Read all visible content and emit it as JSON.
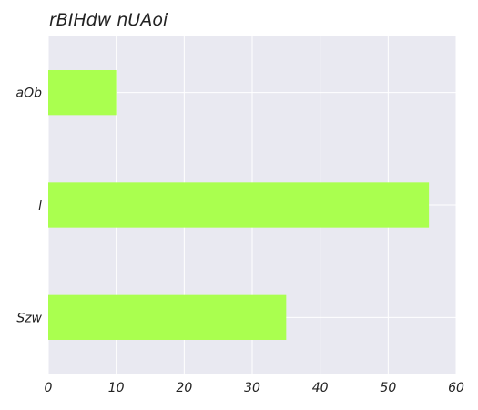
{
  "chart_data": {
    "type": "bar",
    "orientation": "horizontal",
    "title": "rBIHdw nUAoi",
    "xlabel": "",
    "ylabel": "",
    "categories": [
      "aOb",
      "l",
      "Szw"
    ],
    "values": [
      10,
      56,
      35
    ],
    "xlim": [
      0,
      60
    ],
    "xticks": [
      0,
      10,
      20,
      30,
      40,
      50,
      60
    ],
    "grid": true,
    "legend": "none",
    "colors": {
      "bar": "#aaff4f",
      "plot_background": "#e9e9f1",
      "grid": "#ffffff"
    }
  }
}
